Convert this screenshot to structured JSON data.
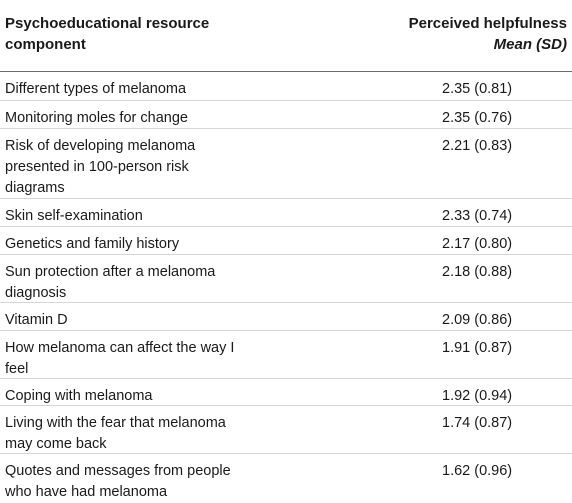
{
  "table": {
    "header": {
      "component": "Psychoeducational resource component",
      "helpfulness_line1": "Perceived helpfulness",
      "helpfulness_line2": "Mean (SD)"
    },
    "rows": [
      {
        "component": "Different types of melanoma",
        "value": "2.35 (0.81)"
      },
      {
        "component": "Monitoring moles for change",
        "value": "2.35 (0.76)"
      },
      {
        "component": "Risk of developing melanoma presented in 100-person risk diagrams",
        "value": "2.21 (0.83)"
      },
      {
        "component": "Skin self-examination",
        "value": "2.33 (0.74)"
      },
      {
        "component": "Genetics and family history",
        "value": "2.17 (0.80)"
      },
      {
        "component": "Sun protection after a melanoma diagnosis",
        "value": "2.18 (0.88)"
      },
      {
        "component": "Vitamin D",
        "value": "2.09 (0.86)"
      },
      {
        "component": "How melanoma can affect the way I feel",
        "value": "1.91 (0.87)"
      },
      {
        "component": "Coping with melanoma",
        "value": "1.92 (0.94)"
      },
      {
        "component": "Living with the fear that melanoma may come back",
        "value": "1.74 (0.87)"
      },
      {
        "component": "Quotes and messages from people who have had melanoma",
        "value": "1.62 (0.96)"
      }
    ]
  }
}
